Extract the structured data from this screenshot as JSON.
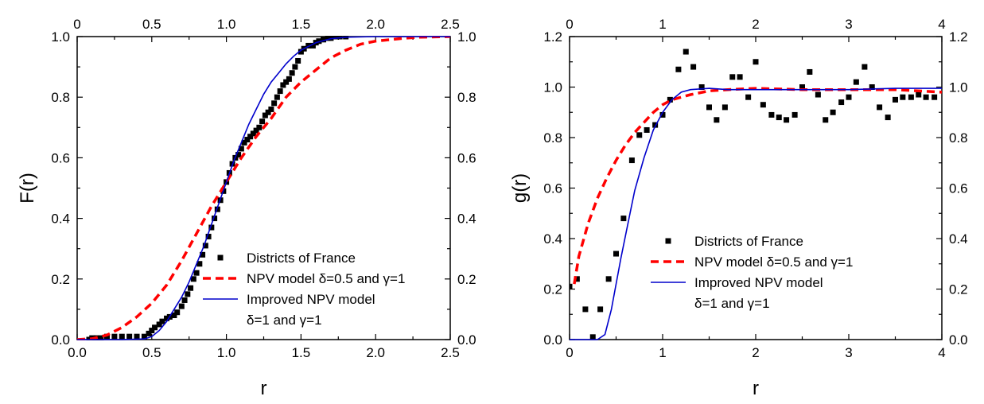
{
  "chart_data": [
    {
      "type": "scatter",
      "panel": "left",
      "xlabel": "r",
      "ylabel": "F(r)",
      "xlim": [
        0,
        2.5
      ],
      "ylim": [
        0,
        1.0
      ],
      "xticks": [
        "0.0",
        "0.5",
        "1.0",
        "1.5",
        "2.0",
        "2.5"
      ],
      "xticks_top": [
        "0",
        "0.5",
        "1.0",
        "1.5",
        "2.0",
        "2.5"
      ],
      "yticks": [
        "0.0",
        "0.2",
        "0.4",
        "0.6",
        "0.8",
        "1.0"
      ],
      "yticks_right": [
        "0.0",
        "0.2",
        "0.4",
        "0.6",
        "0.8",
        "1.0"
      ],
      "grid": false,
      "legend_position": "bottom-right",
      "series": [
        {
          "name": "Districts of France",
          "style": "square-markers",
          "color": "#000000",
          "x": [
            0.08,
            0.1,
            0.13,
            0.16,
            0.2,
            0.25,
            0.3,
            0.35,
            0.4,
            0.45,
            0.48,
            0.5,
            0.52,
            0.55,
            0.57,
            0.6,
            0.62,
            0.65,
            0.67,
            0.7,
            0.72,
            0.74,
            0.76,
            0.78,
            0.8,
            0.82,
            0.84,
            0.86,
            0.88,
            0.9,
            0.92,
            0.94,
            0.96,
            0.98,
            1.0,
            1.02,
            1.04,
            1.06,
            1.08,
            1.1,
            1.12,
            1.14,
            1.16,
            1.18,
            1.2,
            1.22,
            1.24,
            1.26,
            1.28,
            1.3,
            1.32,
            1.34,
            1.36,
            1.38,
            1.4,
            1.42,
            1.44,
            1.46,
            1.48,
            1.5,
            1.52,
            1.55,
            1.58,
            1.6,
            1.62,
            1.65,
            1.68,
            1.7,
            1.73,
            1.76,
            1.8
          ],
          "y": [
            0.0,
            0.005,
            0.005,
            0.005,
            0.01,
            0.01,
            0.01,
            0.01,
            0.01,
            0.01,
            0.02,
            0.03,
            0.04,
            0.05,
            0.06,
            0.07,
            0.075,
            0.08,
            0.09,
            0.11,
            0.13,
            0.15,
            0.17,
            0.2,
            0.22,
            0.25,
            0.28,
            0.31,
            0.34,
            0.37,
            0.4,
            0.43,
            0.46,
            0.49,
            0.52,
            0.55,
            0.58,
            0.6,
            0.61,
            0.63,
            0.65,
            0.66,
            0.67,
            0.68,
            0.69,
            0.7,
            0.72,
            0.74,
            0.75,
            0.76,
            0.78,
            0.8,
            0.82,
            0.84,
            0.85,
            0.86,
            0.88,
            0.9,
            0.92,
            0.95,
            0.96,
            0.97,
            0.97,
            0.98,
            0.985,
            0.99,
            0.995,
            0.995,
            1.0,
            1.0,
            1.0
          ]
        },
        {
          "name": "NPV model δ=0.5 and γ=1",
          "style": "dashed-line",
          "color": "#ff0000",
          "x": [
            0.0,
            0.1,
            0.2,
            0.3,
            0.4,
            0.5,
            0.6,
            0.7,
            0.8,
            0.9,
            1.0,
            1.1,
            1.2,
            1.3,
            1.4,
            1.5,
            1.6,
            1.7,
            1.8,
            1.9,
            2.0,
            2.1,
            2.2,
            2.3,
            2.4,
            2.5
          ],
          "y": [
            0.0,
            0.003,
            0.015,
            0.04,
            0.075,
            0.12,
            0.18,
            0.26,
            0.35,
            0.44,
            0.52,
            0.6,
            0.67,
            0.73,
            0.8,
            0.85,
            0.89,
            0.93,
            0.955,
            0.975,
            0.985,
            0.99,
            0.995,
            0.998,
            0.999,
            1.0
          ]
        },
        {
          "name": "Improved NPV model",
          "name_line2": "δ=1 and γ=1",
          "style": "solid-line",
          "color": "#0000cc",
          "x": [
            0.0,
            0.3,
            0.45,
            0.5,
            0.55,
            0.6,
            0.65,
            0.7,
            0.75,
            0.8,
            0.85,
            0.9,
            0.95,
            1.0,
            1.05,
            1.1,
            1.15,
            1.2,
            1.25,
            1.3,
            1.35,
            1.4,
            1.45,
            1.5,
            1.6,
            1.7,
            1.8,
            2.0,
            2.2,
            2.5
          ],
          "y": [
            0.0,
            0.0,
            0.002,
            0.01,
            0.03,
            0.06,
            0.1,
            0.14,
            0.19,
            0.25,
            0.31,
            0.38,
            0.45,
            0.52,
            0.59,
            0.65,
            0.71,
            0.76,
            0.81,
            0.85,
            0.88,
            0.91,
            0.935,
            0.955,
            0.98,
            0.993,
            0.998,
            1.0,
            1.0,
            1.0
          ]
        }
      ]
    },
    {
      "type": "scatter",
      "panel": "right",
      "xlabel": "r",
      "ylabel": "g(r)",
      "xlim": [
        0,
        4
      ],
      "ylim": [
        0,
        1.2
      ],
      "xticks": [
        "0",
        "1",
        "2",
        "3",
        "4"
      ],
      "xticks_top": [
        "0",
        "1",
        "2",
        "3",
        "4"
      ],
      "yticks": [
        "0.0",
        "0.2",
        "0.4",
        "0.6",
        "0.8",
        "1.0",
        "1.2"
      ],
      "yticks_right": [
        "0.0",
        "0.2",
        "0.4",
        "0.6",
        "0.8",
        "1.0",
        "1.2"
      ],
      "grid": false,
      "legend_position": "center",
      "series": [
        {
          "name": "Districts of France",
          "style": "square-markers",
          "color": "#000000",
          "x": [
            0.0,
            0.08,
            0.17,
            0.25,
            0.33,
            0.42,
            0.5,
            0.58,
            0.67,
            0.75,
            0.83,
            0.92,
            1.0,
            1.08,
            1.17,
            1.25,
            1.33,
            1.42,
            1.5,
            1.58,
            1.67,
            1.75,
            1.83,
            1.92,
            2.0,
            2.08,
            2.17,
            2.25,
            2.33,
            2.42,
            2.5,
            2.58,
            2.67,
            2.75,
            2.83,
            2.92,
            3.0,
            3.08,
            3.17,
            3.25,
            3.33,
            3.42,
            3.5,
            3.58,
            3.67,
            3.75,
            3.83,
            3.92
          ],
          "y": [
            0.21,
            0.24,
            0.12,
            0.01,
            0.12,
            0.24,
            0.34,
            0.48,
            0.71,
            0.81,
            0.83,
            0.85,
            0.89,
            0.95,
            1.07,
            1.14,
            1.08,
            1.0,
            0.92,
            0.87,
            0.92,
            1.04,
            1.04,
            0.96,
            1.1,
            0.93,
            0.89,
            0.88,
            0.87,
            0.89,
            1.0,
            1.06,
            0.97,
            0.87,
            0.9,
            0.94,
            0.96,
            1.02,
            1.08,
            1.0,
            0.92,
            0.88,
            0.95,
            0.96,
            0.96,
            0.97,
            0.96,
            0.96
          ]
        },
        {
          "name": "NPV model δ=0.5 and γ=1",
          "style": "dashed-line",
          "color": "#ff0000",
          "x": [
            0.05,
            0.1,
            0.2,
            0.3,
            0.4,
            0.5,
            0.6,
            0.7,
            0.8,
            0.9,
            1.0,
            1.1,
            1.2,
            1.3,
            1.5,
            1.7,
            2.0,
            2.5,
            3.0,
            3.5,
            4.0
          ],
          "y": [
            0.22,
            0.33,
            0.46,
            0.56,
            0.64,
            0.71,
            0.77,
            0.82,
            0.86,
            0.9,
            0.93,
            0.95,
            0.96,
            0.97,
            0.985,
            0.99,
            0.995,
            0.99,
            0.99,
            0.99,
            0.98
          ]
        },
        {
          "name": "Improved NPV model",
          "name_line2": "δ=1 and γ=1",
          "style": "solid-line",
          "color": "#0000cc",
          "x": [
            0.0,
            0.3,
            0.38,
            0.45,
            0.5,
            0.55,
            0.6,
            0.65,
            0.7,
            0.8,
            0.9,
            1.0,
            1.1,
            1.2,
            1.3,
            1.5,
            1.7,
            2.0,
            2.5,
            3.0,
            3.5,
            4.0
          ],
          "y": [
            0.0,
            0.0,
            0.02,
            0.12,
            0.22,
            0.32,
            0.41,
            0.5,
            0.59,
            0.72,
            0.83,
            0.9,
            0.95,
            0.98,
            0.99,
            0.995,
            0.99,
            0.99,
            0.99,
            0.99,
            0.995,
            0.995
          ]
        }
      ]
    }
  ]
}
